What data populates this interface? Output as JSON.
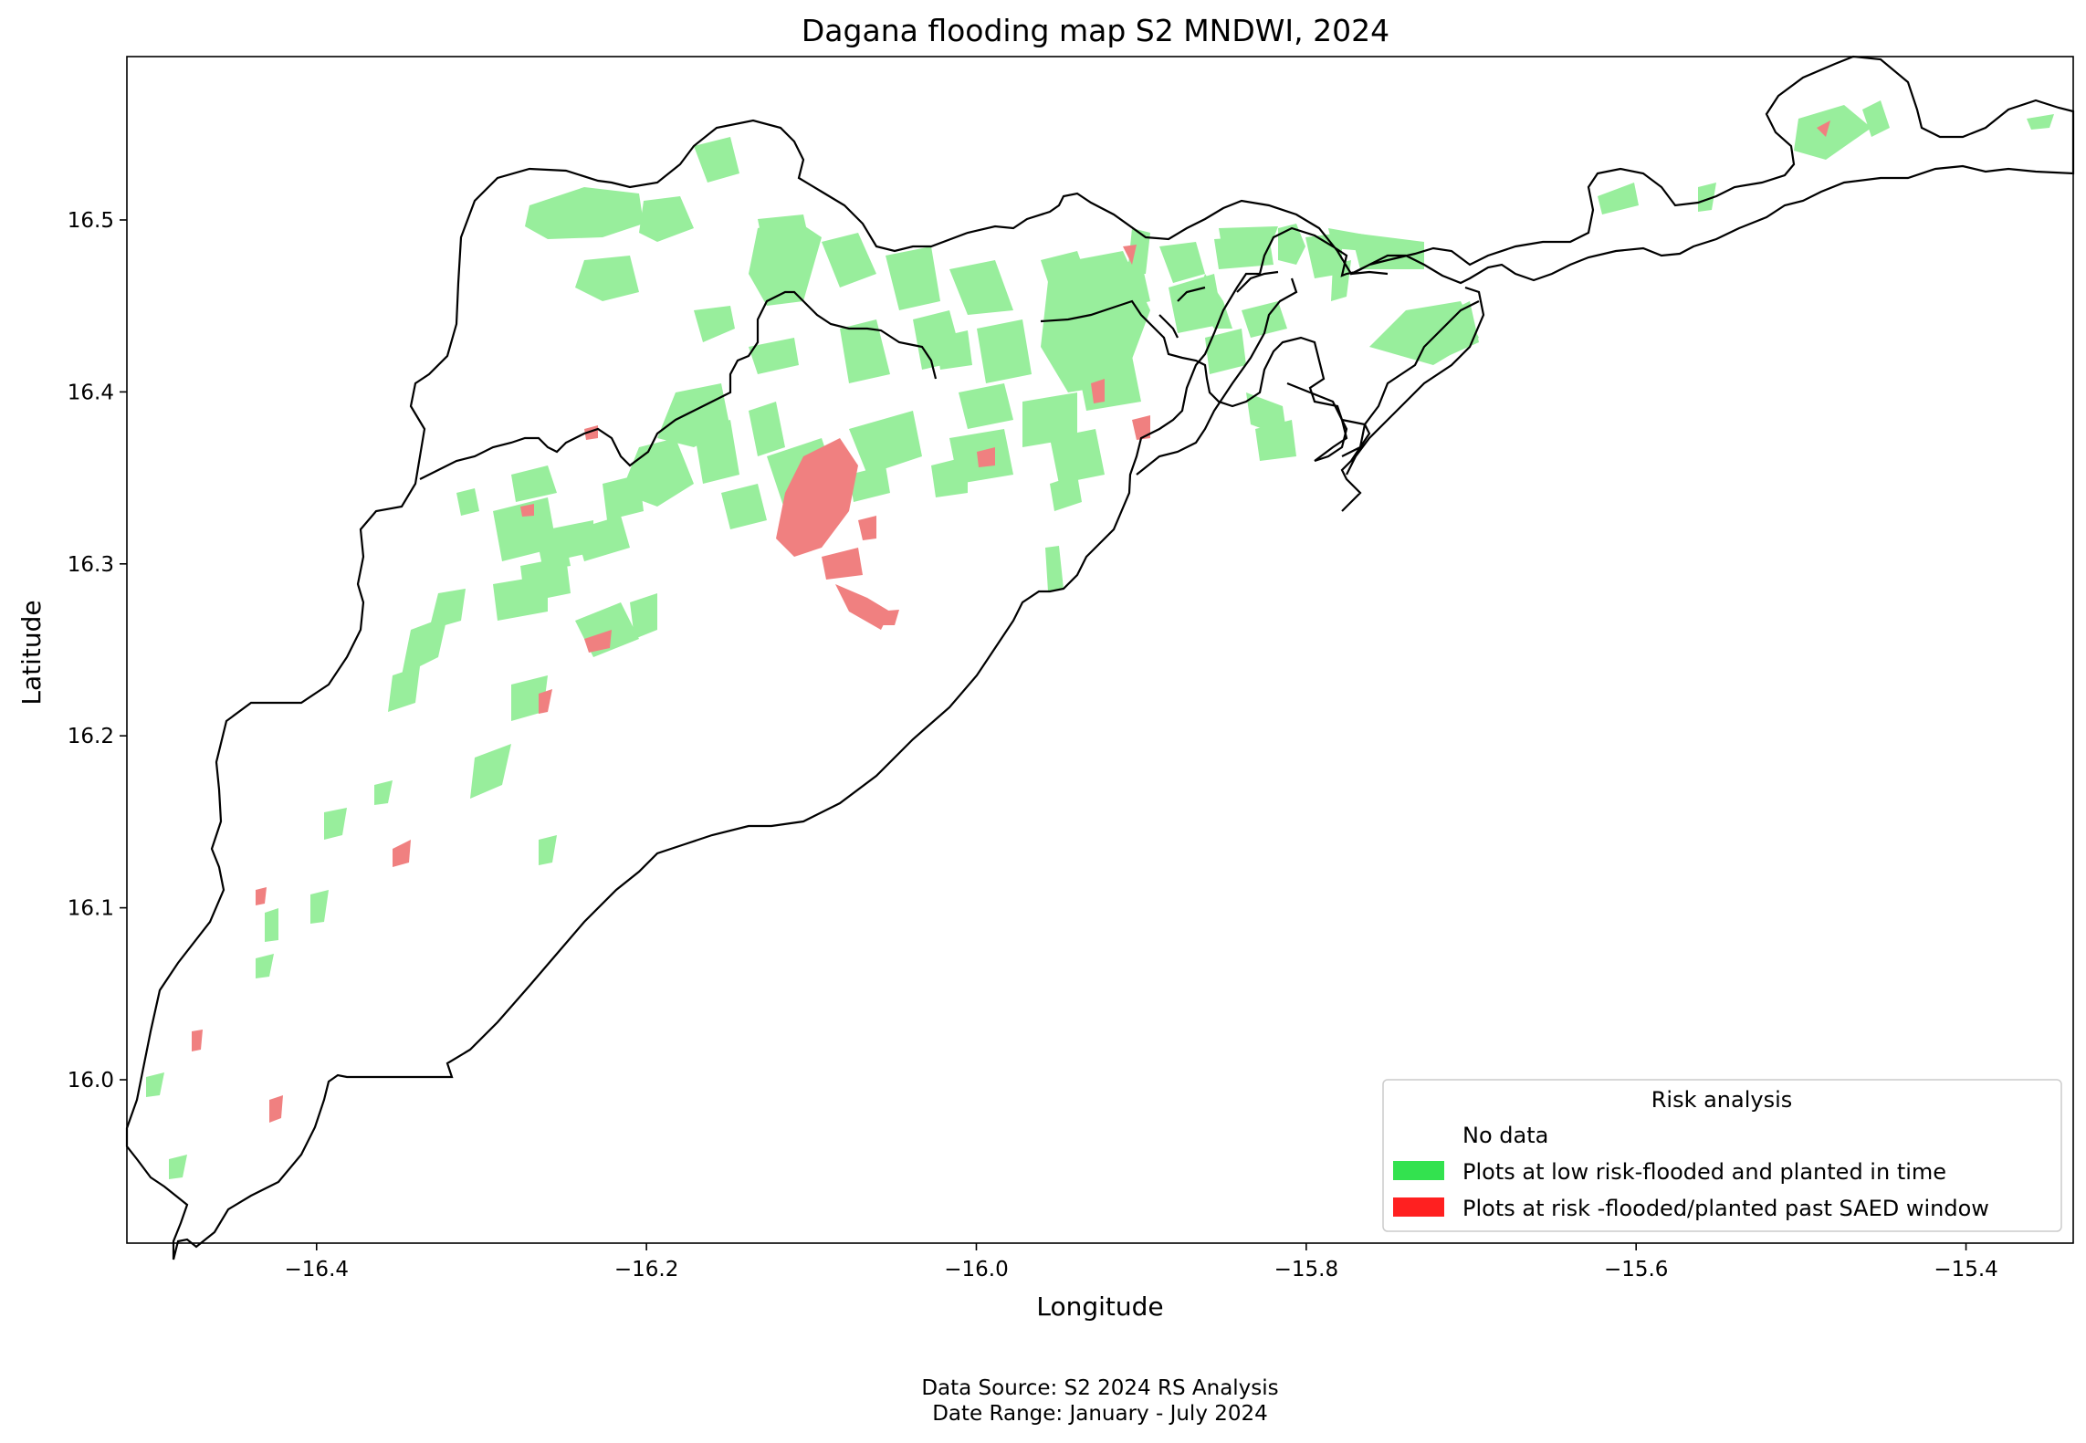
{
  "figure": {
    "title": "Dagana flooding map S2 MNDWI, 2024",
    "xlabel": "Longitude",
    "ylabel": "Latitude",
    "footer": {
      "line1": "Data Source: S2 2024 RS Analysis",
      "line2": "Date Range: January - July 2024"
    }
  },
  "map": {
    "type": "choropleth",
    "region": "Dagana",
    "xlim": [
      -16.515,
      -15.335
    ],
    "ylim": [
      15.905,
      16.595
    ],
    "x_ticks": [
      {
        "value": -16.4,
        "label": "−16.4"
      },
      {
        "value": -16.2,
        "label": "−16.2"
      },
      {
        "value": -16.0,
        "label": "−16.0"
      },
      {
        "value": -15.8,
        "label": "−15.8"
      },
      {
        "value": -15.6,
        "label": "−15.6"
      },
      {
        "value": -15.4,
        "label": "−15.4"
      }
    ],
    "y_ticks": [
      {
        "value": 16.0,
        "label": "16.0"
      },
      {
        "value": 16.1,
        "label": "16.1"
      },
      {
        "value": 16.2,
        "label": "16.2"
      },
      {
        "value": 16.3,
        "label": "16.3"
      },
      {
        "value": 16.4,
        "label": "16.4"
      },
      {
        "value": 16.5,
        "label": "16.5"
      }
    ],
    "legend": {
      "title": "Risk analysis",
      "placement": "lower-right",
      "entries": [
        {
          "label": "No data",
          "color": "#ffffff"
        },
        {
          "label": "Plots at low risk-flooded and planted in time",
          "color": "#33e24f"
        },
        {
          "label": "Plots at risk -flooded/planted past SAED window",
          "color": "#ff2020"
        }
      ]
    },
    "plot_fill_colors": {
      "low_risk": "#98ee9c",
      "at_risk": "#f08080"
    }
  }
}
